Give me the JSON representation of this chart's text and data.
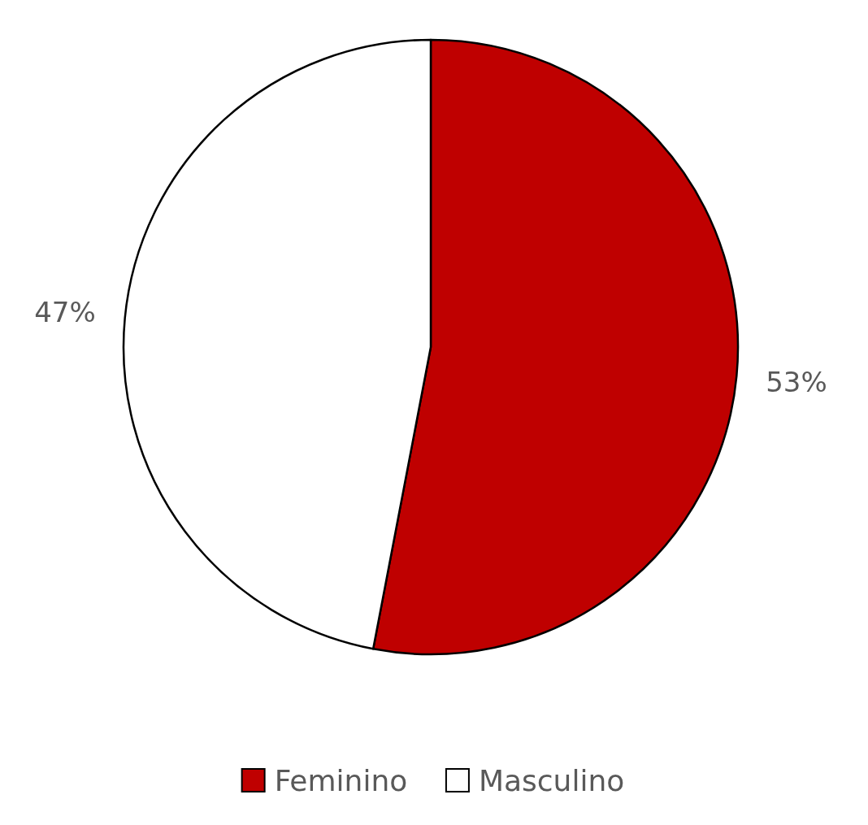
{
  "chart_data": {
    "type": "pie",
    "categories": [
      "Feminino",
      "Masculino"
    ],
    "values": [
      53,
      47
    ],
    "value_labels": [
      "53%",
      "47%"
    ],
    "colors": [
      "#bf0000",
      "#ffffff"
    ],
    "legend": "bottom"
  }
}
